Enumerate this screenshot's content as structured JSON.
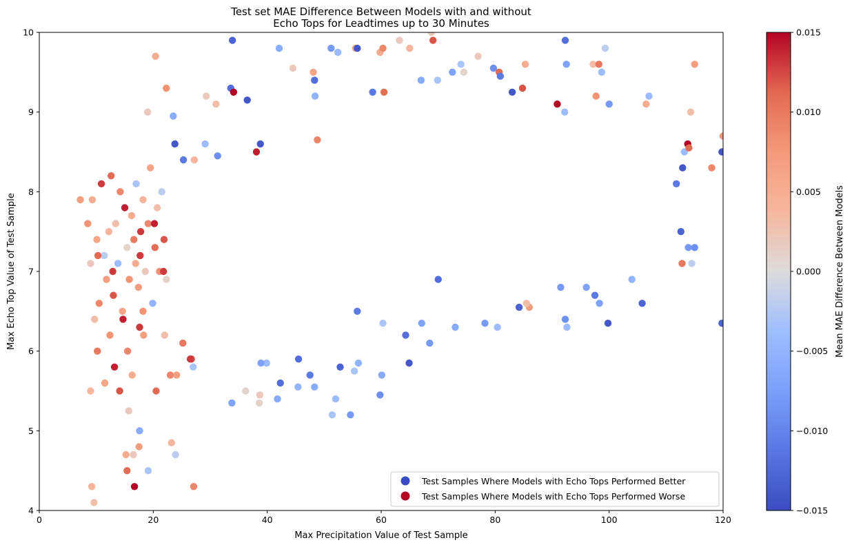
{
  "chart_data": {
    "type": "scatter",
    "title_lines": [
      "Test set MAE Difference Between Models with and without",
      "Echo Tops for Leadtimes up to 30 Minutes"
    ],
    "xlabel": "Max Precipitation Value of Test Sample",
    "ylabel": "Max Echo Top Value of Test Sample",
    "xlim": [
      0,
      120
    ],
    "ylim": [
      4,
      10
    ],
    "x_ticks": [
      0,
      20,
      40,
      60,
      80,
      100,
      120
    ],
    "y_ticks": [
      4,
      5,
      6,
      7,
      8,
      9,
      10
    ],
    "grid": false,
    "legend_position": "lower-right",
    "legend": [
      {
        "label": "Test Samples Where Models with Echo Tops Performed Better",
        "color": "#3b4cc0"
      },
      {
        "label": "Test Samples Where Models with Echo Tops Performed Worse",
        "color": "#b40426"
      }
    ],
    "colorbar": {
      "label": "Mean MAE Difference Between Models",
      "colormap": "coolwarm",
      "clim": [
        -0.015,
        0.015
      ],
      "tick_values": [
        -0.015,
        -0.01,
        -0.005,
        0.0,
        0.005,
        0.01,
        0.015
      ],
      "tick_labels": [
        "−0.015",
        "−0.010",
        "−0.005",
        "0.000",
        "0.005",
        "0.010",
        "0.015"
      ]
    },
    "point_color_by": "Mean MAE Difference Between Models",
    "points": [
      [
        7.2,
        7.9,
        0.007
      ],
      [
        8.5,
        7.6,
        0.008
      ],
      [
        9.0,
        7.1,
        0.002
      ],
      [
        9.3,
        7.9,
        0.005
      ],
      [
        9.7,
        6.4,
        0.003
      ],
      [
        10.1,
        7.4,
        0.006
      ],
      [
        10.5,
        6.6,
        0.009
      ],
      [
        10.9,
        8.1,
        0.013
      ],
      [
        11.4,
        7.2,
        -0.002
      ],
      [
        11.8,
        6.9,
        0.007
      ],
      [
        12.2,
        7.5,
        0.004
      ],
      [
        12.6,
        8.2,
        0.011
      ],
      [
        13.0,
        6.7,
        0.012
      ],
      [
        13.4,
        7.6,
        0.003
      ],
      [
        13.8,
        7.1,
        -0.004
      ],
      [
        14.2,
        8.0,
        0.009
      ],
      [
        14.6,
        6.5,
        0.006
      ],
      [
        15.0,
        7.8,
        0.014
      ],
      [
        15.4,
        7.3,
        0.001
      ],
      [
        15.8,
        6.9,
        0.008
      ],
      [
        16.2,
        7.7,
        0.005
      ],
      [
        16.6,
        7.4,
        0.01
      ],
      [
        17.0,
        8.1,
        -0.003
      ],
      [
        17.4,
        6.8,
        0.007
      ],
      [
        17.8,
        7.5,
        0.013
      ],
      [
        18.2,
        7.9,
        0.004
      ],
      [
        18.6,
        7.0,
        0.002
      ],
      [
        19.1,
        7.6,
        0.009
      ],
      [
        19.5,
        8.3,
        0.006
      ],
      [
        19.9,
        6.6,
        -0.005
      ],
      [
        20.3,
        7.3,
        0.011
      ],
      [
        20.7,
        7.8,
        0.003
      ],
      [
        21.1,
        7.0,
        0.008
      ],
      [
        21.5,
        8.0,
        -0.002
      ],
      [
        21.9,
        7.4,
        0.012
      ],
      [
        22.3,
        6.9,
        0.001
      ],
      [
        9.0,
        5.5,
        0.004
      ],
      [
        10.2,
        6.0,
        0.01
      ],
      [
        11.5,
        5.6,
        0.006
      ],
      [
        12.4,
        6.2,
        0.008
      ],
      [
        13.2,
        5.8,
        0.014
      ],
      [
        14.1,
        5.5,
        0.012
      ],
      [
        15.5,
        6.0,
        0.009
      ],
      [
        16.3,
        5.7,
        0.005
      ],
      [
        17.6,
        6.3,
        0.013
      ],
      [
        18.3,
        6.2,
        0.007
      ],
      [
        20.5,
        5.5,
        0.011
      ],
      [
        22.0,
        6.2,
        0.003
      ],
      [
        23.0,
        5.7,
        0.009
      ],
      [
        25.2,
        6.1,
        0.01
      ],
      [
        26.7,
        5.9,
        0.012
      ],
      [
        9.2,
        4.3,
        0.004
      ],
      [
        9.6,
        4.1,
        0.003
      ],
      [
        15.4,
        4.5,
        0.011
      ],
      [
        16.7,
        4.3,
        0.015
      ],
      [
        17.5,
        4.8,
        0.007
      ],
      [
        15.2,
        4.7,
        0.005
      ],
      [
        16.5,
        4.7,
        0.002
      ],
      [
        23.2,
        4.85,
        0.004
      ],
      [
        27.1,
        4.3,
        0.009
      ],
      [
        17.6,
        5.0,
        -0.006
      ],
      [
        19.1,
        4.5,
        -0.003
      ],
      [
        23.9,
        4.7,
        -0.002
      ],
      [
        15.7,
        5.25,
        0.002
      ],
      [
        12.9,
        7.0,
        0.013
      ],
      [
        14.7,
        6.4,
        0.014
      ],
      [
        17.7,
        7.2,
        0.013
      ],
      [
        20.2,
        7.6,
        0.014
      ],
      [
        21.8,
        7.0,
        0.013
      ],
      [
        10.3,
        7.2,
        0.011
      ],
      [
        18.2,
        6.5,
        0.008
      ],
      [
        16.9,
        7.1,
        0.005
      ],
      [
        19.0,
        9.0,
        0.002
      ],
      [
        20.4,
        9.7,
        0.005
      ],
      [
        22.3,
        9.3,
        0.008
      ],
      [
        23.5,
        8.95,
        -0.006
      ],
      [
        23.8,
        8.6,
        -0.014
      ],
      [
        25.3,
        8.4,
        -0.011
      ],
      [
        27.2,
        8.4,
        0.004
      ],
      [
        29.1,
        8.6,
        -0.004
      ],
      [
        29.3,
        9.2,
        0.002
      ],
      [
        31.0,
        9.1,
        0.003
      ],
      [
        31.3,
        8.45,
        -0.009
      ],
      [
        33.6,
        9.3,
        -0.012
      ],
      [
        33.9,
        9.9,
        -0.013
      ],
      [
        34.1,
        9.25,
        0.015
      ],
      [
        36.5,
        9.15,
        -0.014
      ],
      [
        38.1,
        8.5,
        0.014
      ],
      [
        38.8,
        8.6,
        -0.014
      ],
      [
        42.1,
        9.8,
        -0.006
      ],
      [
        44.5,
        9.55,
        0.002
      ],
      [
        48.1,
        9.5,
        0.006
      ],
      [
        48.3,
        9.4,
        -0.012
      ],
      [
        48.4,
        9.2,
        -0.005
      ],
      [
        48.8,
        8.65,
        0.009
      ],
      [
        51.2,
        9.8,
        -0.008
      ],
      [
        52.4,
        9.75,
        -0.004
      ],
      [
        55.5,
        9.8,
        0.006
      ],
      [
        55.8,
        9.8,
        -0.014
      ],
      [
        58.5,
        9.25,
        -0.011
      ],
      [
        59.8,
        9.75,
        0.005
      ],
      [
        60.3,
        9.8,
        0.009
      ],
      [
        60.5,
        9.25,
        0.011
      ],
      [
        63.2,
        9.9,
        0.002
      ],
      [
        65.0,
        9.8,
        0.004
      ],
      [
        67.0,
        9.4,
        -0.006
      ],
      [
        68.8,
        10.0,
        0.002
      ],
      [
        69.1,
        9.9,
        0.012
      ],
      [
        69.9,
        9.4,
        -0.003
      ],
      [
        72.5,
        9.5,
        -0.007
      ],
      [
        74.0,
        9.6,
        -0.003
      ],
      [
        74.5,
        9.5,
        0.001
      ],
      [
        77.0,
        9.7,
        0.002
      ],
      [
        79.7,
        9.55,
        -0.009
      ],
      [
        80.7,
        9.5,
        0.011
      ],
      [
        80.9,
        9.45,
        -0.011
      ],
      [
        83.0,
        9.25,
        -0.014
      ],
      [
        84.8,
        9.3,
        0.012
      ],
      [
        85.3,
        9.6,
        0.005
      ],
      [
        90.9,
        9.1,
        0.015
      ],
      [
        92.2,
        9.0,
        -0.004
      ],
      [
        92.3,
        9.9,
        -0.012
      ],
      [
        92.5,
        9.6,
        -0.007
      ],
      [
        97.2,
        9.6,
        0.003
      ],
      [
        97.7,
        9.2,
        0.008
      ],
      [
        98.2,
        9.6,
        0.01
      ],
      [
        98.7,
        9.5,
        -0.004
      ],
      [
        99.3,
        9.8,
        -0.002
      ],
      [
        100.0,
        9.1,
        -0.008
      ],
      [
        106.5,
        9.1,
        0.005
      ],
      [
        107.0,
        9.2,
        -0.004
      ],
      [
        114.3,
        9.0,
        0.003
      ],
      [
        115.0,
        9.6,
        0.007
      ],
      [
        118.0,
        8.3,
        0.009
      ],
      [
        119.8,
        8.5,
        -0.014
      ],
      [
        120.0,
        8.7,
        0.008
      ],
      [
        119.8,
        6.35,
        -0.013
      ],
      [
        111.8,
        8.1,
        -0.011
      ],
      [
        112.9,
        8.3,
        -0.014
      ],
      [
        113.2,
        8.5,
        -0.004
      ],
      [
        113.8,
        8.6,
        0.015
      ],
      [
        114.0,
        8.55,
        0.011
      ],
      [
        112.6,
        7.5,
        -0.013
      ],
      [
        113.9,
        7.3,
        -0.008
      ],
      [
        114.5,
        7.1,
        -0.002
      ],
      [
        115.0,
        7.3,
        -0.009
      ],
      [
        112.8,
        7.1,
        0.01
      ],
      [
        105.8,
        6.6,
        -0.013
      ],
      [
        104.0,
        6.9,
        -0.005
      ],
      [
        99.8,
        6.35,
        -0.014
      ],
      [
        98.3,
        6.6,
        -0.007
      ],
      [
        97.5,
        6.7,
        -0.011
      ],
      [
        96.0,
        6.8,
        -0.007
      ],
      [
        92.6,
        6.3,
        -0.004
      ],
      [
        92.3,
        6.4,
        -0.009
      ],
      [
        91.5,
        6.8,
        -0.008
      ],
      [
        86.0,
        6.55,
        0.007
      ],
      [
        85.5,
        6.6,
        0.003
      ],
      [
        84.2,
        6.55,
        -0.013
      ],
      [
        80.4,
        6.3,
        -0.004
      ],
      [
        78.2,
        6.35,
        -0.008
      ],
      [
        73.0,
        6.3,
        -0.006
      ],
      [
        70.0,
        6.9,
        -0.012
      ],
      [
        68.5,
        6.1,
        -0.008
      ],
      [
        67.1,
        6.35,
        -0.007
      ],
      [
        64.9,
        5.85,
        -0.014
      ],
      [
        64.3,
        6.2,
        -0.012
      ],
      [
        60.3,
        6.35,
        -0.003
      ],
      [
        60.1,
        5.7,
        -0.006
      ],
      [
        59.8,
        5.45,
        -0.009
      ],
      [
        56.0,
        5.85,
        -0.005
      ],
      [
        55.8,
        6.5,
        -0.011
      ],
      [
        55.3,
        5.75,
        -0.003
      ],
      [
        54.6,
        5.2,
        -0.008
      ],
      [
        52.8,
        5.8,
        -0.013
      ],
      [
        52.0,
        5.4,
        -0.004
      ],
      [
        51.4,
        5.2,
        -0.003
      ],
      [
        48.3,
        5.55,
        -0.006
      ],
      [
        47.5,
        5.7,
        -0.011
      ],
      [
        45.4,
        5.55,
        -0.005
      ],
      [
        45.5,
        5.9,
        -0.012
      ],
      [
        42.3,
        5.6,
        -0.012
      ],
      [
        41.8,
        5.4,
        -0.006
      ],
      [
        39.9,
        5.85,
        -0.004
      ],
      [
        38.9,
        5.85,
        -0.007
      ],
      [
        38.6,
        5.35,
        0.001
      ],
      [
        38.7,
        5.45,
        0.002
      ],
      [
        36.2,
        5.5,
        0.001
      ],
      [
        33.8,
        5.35,
        -0.007
      ],
      [
        27.0,
        5.8,
        -0.003
      ],
      [
        26.5,
        5.9,
        0.013
      ],
      [
        24.1,
        5.7,
        0.007
      ]
    ]
  }
}
